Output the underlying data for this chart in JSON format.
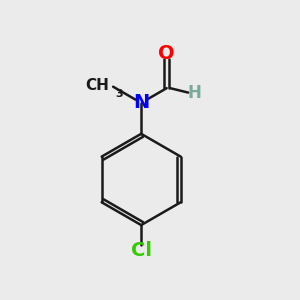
{
  "background_color": "#ebebeb",
  "atom_colors": {
    "C": "#1a1a1a",
    "H": "#7aaa9a",
    "N": "#0000ff",
    "O": "#ff0000",
    "Cl": "#33cc00"
  },
  "bond_color": "#1a1a1a",
  "bond_width": 1.8,
  "font_size_atoms": 14,
  "font_size_H": 12,
  "font_size_me": 11
}
